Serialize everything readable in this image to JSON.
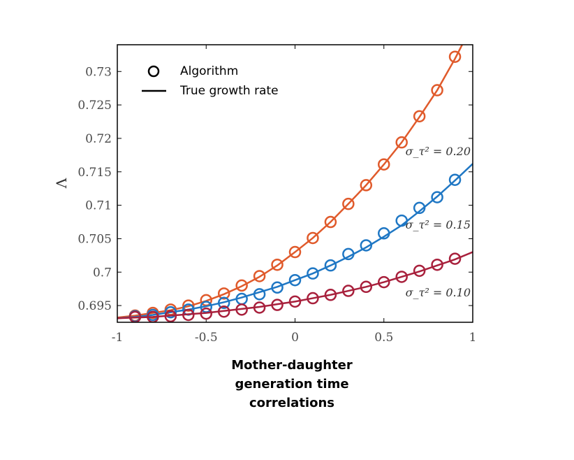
{
  "chart_data": {
    "type": "line",
    "ylabel": "Λ",
    "xlabel_lines": [
      "Mother-daughter",
      "generation time",
      "correlations"
    ],
    "xlim": [
      -1,
      1
    ],
    "ylim": [
      0.6925,
      0.734
    ],
    "xticks": [
      -1,
      -0.5,
      0,
      0.5,
      1
    ],
    "xtick_labels": [
      "-1",
      "-0.5",
      "0",
      "0.5",
      "1"
    ],
    "yticks": [
      0.695,
      0.7,
      0.705,
      0.71,
      0.715,
      0.72,
      0.725,
      0.73
    ],
    "ytick_labels": [
      "0.695",
      "0.7",
      "0.705",
      "0.71",
      "0.715",
      "0.72",
      "0.725",
      "0.73"
    ],
    "legend": {
      "position": "top-left",
      "entries": [
        {
          "label": "Algorithm",
          "marker": "circle"
        },
        {
          "label": "True growth rate",
          "marker": "line"
        }
      ]
    },
    "series": [
      {
        "name": "σ_τ² = 0.20",
        "label_text": "σ_τ² = 0.20",
        "color": "#e05a2b",
        "curve_x": [
          -1,
          -0.9,
          -0.8,
          -0.7,
          -0.6,
          -0.5,
          -0.4,
          -0.3,
          -0.2,
          -0.1,
          0,
          0.1,
          0.2,
          0.3,
          0.4,
          0.5,
          0.6,
          0.7,
          0.8,
          0.9,
          0.95
        ],
        "curve_y": [
          0.6932,
          0.6935,
          0.6939,
          0.6943,
          0.6949,
          0.6957,
          0.6967,
          0.6979,
          0.6993,
          0.701,
          0.703,
          0.7051,
          0.7075,
          0.7102,
          0.713,
          0.7161,
          0.7194,
          0.7232,
          0.7272,
          0.7319,
          0.7345
        ],
        "points_x": [
          -0.9,
          -0.8,
          -0.7,
          -0.6,
          -0.5,
          -0.4,
          -0.3,
          -0.2,
          -0.1,
          0,
          0.1,
          0.2,
          0.3,
          0.4,
          0.5,
          0.6,
          0.7,
          0.8,
          0.9
        ],
        "points_y": [
          0.6935,
          0.6939,
          0.6944,
          0.695,
          0.6958,
          0.6968,
          0.698,
          0.6994,
          0.7011,
          0.703,
          0.7051,
          0.7075,
          0.7102,
          0.713,
          0.7161,
          0.7194,
          0.7233,
          0.7272,
          0.7322
        ]
      },
      {
        "name": "σ_τ² = 0.15",
        "label_text": "σ_τ² = 0.15",
        "color": "#1f77c4",
        "curve_x": [
          -1,
          -0.9,
          -0.8,
          -0.7,
          -0.6,
          -0.5,
          -0.4,
          -0.3,
          -0.2,
          -0.1,
          0,
          0.1,
          0.2,
          0.3,
          0.4,
          0.5,
          0.6,
          0.7,
          0.8,
          0.9,
          1
        ],
        "curve_y": [
          0.6931,
          0.6933,
          0.6936,
          0.694,
          0.6944,
          0.6949,
          0.6955,
          0.6962,
          0.697,
          0.6978,
          0.6988,
          0.6998,
          0.701,
          0.7023,
          0.7037,
          0.7053,
          0.707,
          0.7091,
          0.7113,
          0.7137,
          0.7162
        ],
        "points_x": [
          -0.9,
          -0.8,
          -0.7,
          -0.6,
          -0.5,
          -0.4,
          -0.3,
          -0.2,
          -0.1,
          0,
          0.1,
          0.2,
          0.3,
          0.4,
          0.5,
          0.6,
          0.7,
          0.8,
          0.9
        ],
        "points_y": [
          0.6934,
          0.6936,
          0.694,
          0.6944,
          0.6948,
          0.6954,
          0.696,
          0.6967,
          0.6977,
          0.6988,
          0.6998,
          0.701,
          0.7027,
          0.704,
          0.7058,
          0.7077,
          0.7096,
          0.7112,
          0.7138
        ]
      },
      {
        "name": "σ_τ² = 0.10",
        "label_text": "σ_τ² = 0.10",
        "color": "#a8203c",
        "curve_x": [
          -1,
          -0.9,
          -0.8,
          -0.7,
          -0.6,
          -0.5,
          -0.4,
          -0.3,
          -0.2,
          -0.1,
          0,
          0.1,
          0.2,
          0.3,
          0.4,
          0.5,
          0.6,
          0.7,
          0.8,
          0.9,
          1
        ],
        "curve_y": [
          0.6931,
          0.6932,
          0.6933,
          0.6935,
          0.6937,
          0.6939,
          0.6942,
          0.6945,
          0.6948,
          0.6952,
          0.6956,
          0.6961,
          0.6966,
          0.6972,
          0.6978,
          0.6985,
          0.6993,
          0.7001,
          0.701,
          0.7019,
          0.703
        ],
        "points_x": [
          -0.9,
          -0.8,
          -0.7,
          -0.6,
          -0.5,
          -0.4,
          -0.3,
          -0.2,
          -0.1,
          0,
          0.1,
          0.2,
          0.3,
          0.4,
          0.5,
          0.6,
          0.7,
          0.8,
          0.9
        ],
        "points_y": [
          0.6933,
          0.6933,
          0.6934,
          0.6936,
          0.6938,
          0.6941,
          0.6944,
          0.6947,
          0.6951,
          0.6956,
          0.6961,
          0.6966,
          0.6972,
          0.6978,
          0.6985,
          0.6993,
          0.7002,
          0.7011,
          0.702
        ]
      }
    ]
  }
}
